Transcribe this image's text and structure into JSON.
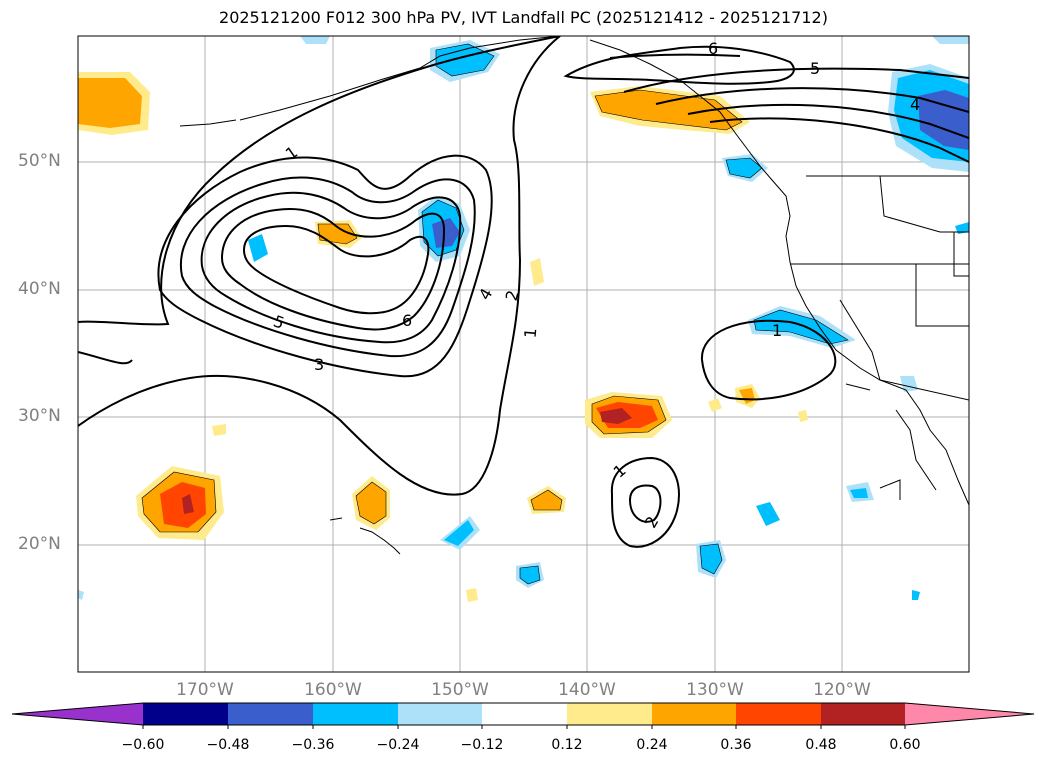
{
  "title": "2025121200 F012 300 hPa PV, IVT Landfall PC (2025121412 - 2025121712)",
  "map": {
    "lat_labels": [
      "50°N",
      "40°N",
      "30°N",
      "20°N"
    ],
    "lon_labels": [
      "170°W",
      "160°W",
      "150°W",
      "140°W",
      "130°W",
      "120°W"
    ],
    "contour_labels": [
      "1",
      "1",
      "1",
      "1",
      "2",
      "2",
      "3",
      "4",
      "4",
      "5",
      "5",
      "6",
      "6"
    ]
  },
  "colorbar": {
    "ticks": [
      "−0.60",
      "−0.48",
      "−0.36",
      "−0.24",
      "−0.12",
      "0.12",
      "0.24",
      "0.36",
      "0.48",
      "0.60"
    ],
    "colors": [
      "#9932CC",
      "#00008B",
      "#3A5FCD",
      "#00BFFF",
      "#ADE1FA",
      "#FFFFFF",
      "#FFEB8C",
      "#FFA500",
      "#FF4500",
      "#B22222",
      "#FF88AA"
    ]
  }
}
